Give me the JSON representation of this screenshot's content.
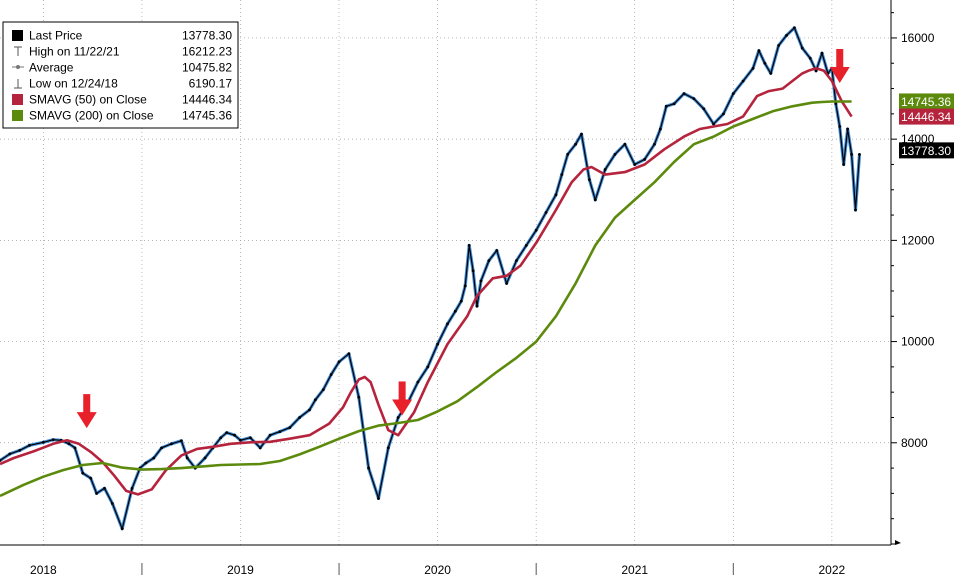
{
  "legend": {
    "entries": [
      {
        "label": "Last Price",
        "value": "13778.30",
        "marker": "square",
        "color": "#000000"
      },
      {
        "label": "High on 11/22/21",
        "value": "16212.23",
        "marker": "high-tick-icon",
        "color": "#555555"
      },
      {
        "label": "Average",
        "value": "10475.82",
        "marker": "average-line-icon",
        "color": "#777777"
      },
      {
        "label": "Low on 12/24/18",
        "value": "6190.17",
        "marker": "low-tick-icon",
        "color": "#555555"
      },
      {
        "label": "SMAVG (50)  on Close",
        "value": "14446.34",
        "marker": "square",
        "color": "#b5243c"
      },
      {
        "label": "SMAVG (200)  on Close",
        "value": "14745.36",
        "marker": "square",
        "color": "#5c8a0c"
      }
    ]
  },
  "value_tags": [
    {
      "value": "14745.36",
      "y": 14745.36,
      "bg": "#5c8a0c",
      "fg": "#ffffff"
    },
    {
      "value": "14446.34",
      "y": 14446.34,
      "bg": "#b5243c",
      "fg": "#ffffff"
    },
    {
      "value": "13778.30",
      "y": 13778.3,
      "bg": "#000000",
      "fg": "#ffffff"
    }
  ],
  "chart_data": {
    "type": "line",
    "ylim": [
      5980,
      16750
    ],
    "xlim": [
      2017.78,
      2022.3
    ],
    "y_ticks": [
      8000,
      10000,
      12000,
      14000,
      16000
    ],
    "y_tick_labels": [
      "8000",
      "10000",
      "12000",
      "14000",
      "16000"
    ],
    "x_tick_labels": [
      {
        "label": "2018",
        "x": 2018.0
      },
      {
        "label": "2019",
        "x": 2019.0
      },
      {
        "label": "2020",
        "x": 2020.0
      },
      {
        "label": "2021",
        "x": 2021.0
      },
      {
        "label": "2022",
        "x": 2022.0
      }
    ],
    "x_separators": [
      2018.5,
      2019.5,
      2020.5,
      2021.5
    ],
    "grid": true,
    "legend_position": "top-left",
    "series": [
      {
        "name": "Last Price",
        "color": "#000000",
        "highlight": "#2b7fd4",
        "x": [
          2017.78,
          2017.83,
          2017.88,
          2017.93,
          2018.0,
          2018.05,
          2018.09,
          2018.13,
          2018.16,
          2018.2,
          2018.24,
          2018.27,
          2018.31,
          2018.35,
          2018.4,
          2018.45,
          2018.49,
          2018.52,
          2018.56,
          2018.6,
          2018.65,
          2018.7,
          2018.73,
          2018.77,
          2018.82,
          2018.86,
          2018.9,
          2018.93,
          2018.97,
          2019.0,
          2019.05,
          2019.1,
          2019.15,
          2019.2,
          2019.25,
          2019.3,
          2019.35,
          2019.38,
          2019.42,
          2019.46,
          2019.5,
          2019.55,
          2019.6,
          2019.65,
          2019.7,
          2019.75,
          2019.8,
          2019.85,
          2019.9,
          2019.95,
          2020.0,
          2020.05,
          2020.09,
          2020.12,
          2020.14,
          2020.16,
          2020.18,
          2020.2,
          2020.22,
          2020.26,
          2020.3,
          2020.35,
          2020.4,
          2020.45,
          2020.5,
          2020.55,
          2020.6,
          2020.63,
          2020.66,
          2020.7,
          2020.73,
          2020.77,
          2020.8,
          2020.85,
          2020.9,
          2020.95,
          2021.0,
          2021.05,
          2021.1,
          2021.13,
          2021.16,
          2021.2,
          2021.25,
          2021.3,
          2021.35,
          2021.4,
          2021.45,
          2021.5,
          2021.55,
          2021.6,
          2021.63,
          2021.66,
          2021.69,
          2021.73,
          2021.77,
          2021.81,
          2021.85,
          2021.89,
          2021.92,
          2021.95,
          2021.98,
          2022.0,
          2022.02,
          2022.04,
          2022.06,
          2022.08,
          2022.1,
          2022.12,
          2022.14
        ],
        "y": [
          7650,
          7780,
          7850,
          7950,
          8010,
          8060,
          8050,
          7980,
          7900,
          7400,
          7300,
          7000,
          7100,
          6800,
          6300,
          7100,
          7500,
          7600,
          7700,
          7900,
          7980,
          8040,
          7700,
          7500,
          7700,
          7900,
          8100,
          8200,
          8150,
          8050,
          8100,
          7900,
          8150,
          8220,
          8300,
          8500,
          8650,
          8850,
          9050,
          9350,
          9600,
          9760,
          8900,
          7500,
          6900,
          7900,
          8500,
          8800,
          9200,
          9500,
          9950,
          10350,
          10600,
          10800,
          11100,
          11900,
          11400,
          10700,
          11200,
          11600,
          11800,
          11150,
          11600,
          11900,
          12200,
          12550,
          12900,
          13300,
          13700,
          13900,
          14100,
          13200,
          12800,
          13400,
          13700,
          13900,
          13500,
          13600,
          13900,
          14200,
          14650,
          14700,
          14900,
          14800,
          14600,
          14300,
          14500,
          14900,
          15150,
          15400,
          15750,
          15500,
          15300,
          15850,
          16050,
          16200,
          15800,
          15600,
          15350,
          15700,
          15300,
          15400,
          14700,
          14250,
          13500,
          14200,
          13700,
          12600,
          13700
        ]
      },
      {
        "name": "SMAVG (50)  on Close",
        "color": "#b5243c",
        "x": [
          2017.78,
          2017.85,
          2017.95,
          2018.05,
          2018.12,
          2018.18,
          2018.24,
          2018.3,
          2018.36,
          2018.42,
          2018.48,
          2018.55,
          2018.62,
          2018.7,
          2018.78,
          2018.86,
          2018.95,
          2019.05,
          2019.15,
          2019.25,
          2019.35,
          2019.45,
          2019.52,
          2019.56,
          2019.6,
          2019.63,
          2019.66,
          2019.7,
          2019.75,
          2019.8,
          2019.88,
          2019.95,
          2020.05,
          2020.15,
          2020.2,
          2020.28,
          2020.35,
          2020.42,
          2020.5,
          2020.6,
          2020.68,
          2020.74,
          2020.78,
          2020.85,
          2020.95,
          2021.05,
          2021.15,
          2021.25,
          2021.33,
          2021.4,
          2021.47,
          2021.55,
          2021.62,
          2021.68,
          2021.75,
          2021.8,
          2021.85,
          2021.88,
          2021.92,
          2021.96,
          2022.0,
          2022.05,
          2022.1
        ],
        "y": [
          7580,
          7700,
          7830,
          7980,
          8050,
          7980,
          7820,
          7620,
          7350,
          7050,
          6980,
          7080,
          7450,
          7750,
          7880,
          7920,
          7980,
          8010,
          8020,
          8080,
          8150,
          8380,
          8700,
          9000,
          9250,
          9300,
          9200,
          8750,
          8250,
          8150,
          8600,
          9200,
          9950,
          10500,
          10900,
          11250,
          11300,
          11500,
          11950,
          12600,
          13150,
          13400,
          13450,
          13300,
          13350,
          13500,
          13800,
          14050,
          14200,
          14250,
          14300,
          14450,
          14850,
          14950,
          15000,
          15150,
          15300,
          15350,
          15400,
          15350,
          15150,
          14750,
          14446
        ]
      },
      {
        "name": "SMAVG (200)  on Close",
        "color": "#5c8a0c",
        "x": [
          2017.78,
          2017.9,
          2018.0,
          2018.1,
          2018.2,
          2018.3,
          2018.4,
          2018.5,
          2018.6,
          2018.7,
          2018.8,
          2018.9,
          2019.0,
          2019.1,
          2019.2,
          2019.3,
          2019.4,
          2019.5,
          2019.6,
          2019.7,
          2019.8,
          2019.9,
          2020.0,
          2020.1,
          2020.2,
          2020.3,
          2020.4,
          2020.5,
          2020.6,
          2020.7,
          2020.8,
          2020.9,
          2021.0,
          2021.1,
          2021.2,
          2021.3,
          2021.4,
          2021.5,
          2021.6,
          2021.7,
          2021.8,
          2021.9,
          2021.95,
          2022.0,
          2022.05,
          2022.1
        ],
        "y": [
          6950,
          7170,
          7330,
          7460,
          7560,
          7600,
          7510,
          7470,
          7480,
          7500,
          7530,
          7560,
          7570,
          7580,
          7640,
          7770,
          7920,
          8080,
          8230,
          8340,
          8390,
          8450,
          8620,
          8820,
          9100,
          9400,
          9680,
          10000,
          10500,
          11150,
          11900,
          12450,
          12800,
          13150,
          13550,
          13900,
          14050,
          14250,
          14400,
          14550,
          14650,
          14720,
          14735,
          14745,
          14745,
          14745
        ]
      }
    ],
    "annotations": [
      {
        "type": "down-arrow",
        "x": 2018.22,
        "y": 8290,
        "color": "#e8202a"
      },
      {
        "type": "down-arrow",
        "x": 2019.82,
        "y": 8540,
        "color": "#e8202a"
      },
      {
        "type": "down-arrow",
        "x": 2022.04,
        "y": 15110,
        "color": "#e8202a"
      }
    ]
  }
}
